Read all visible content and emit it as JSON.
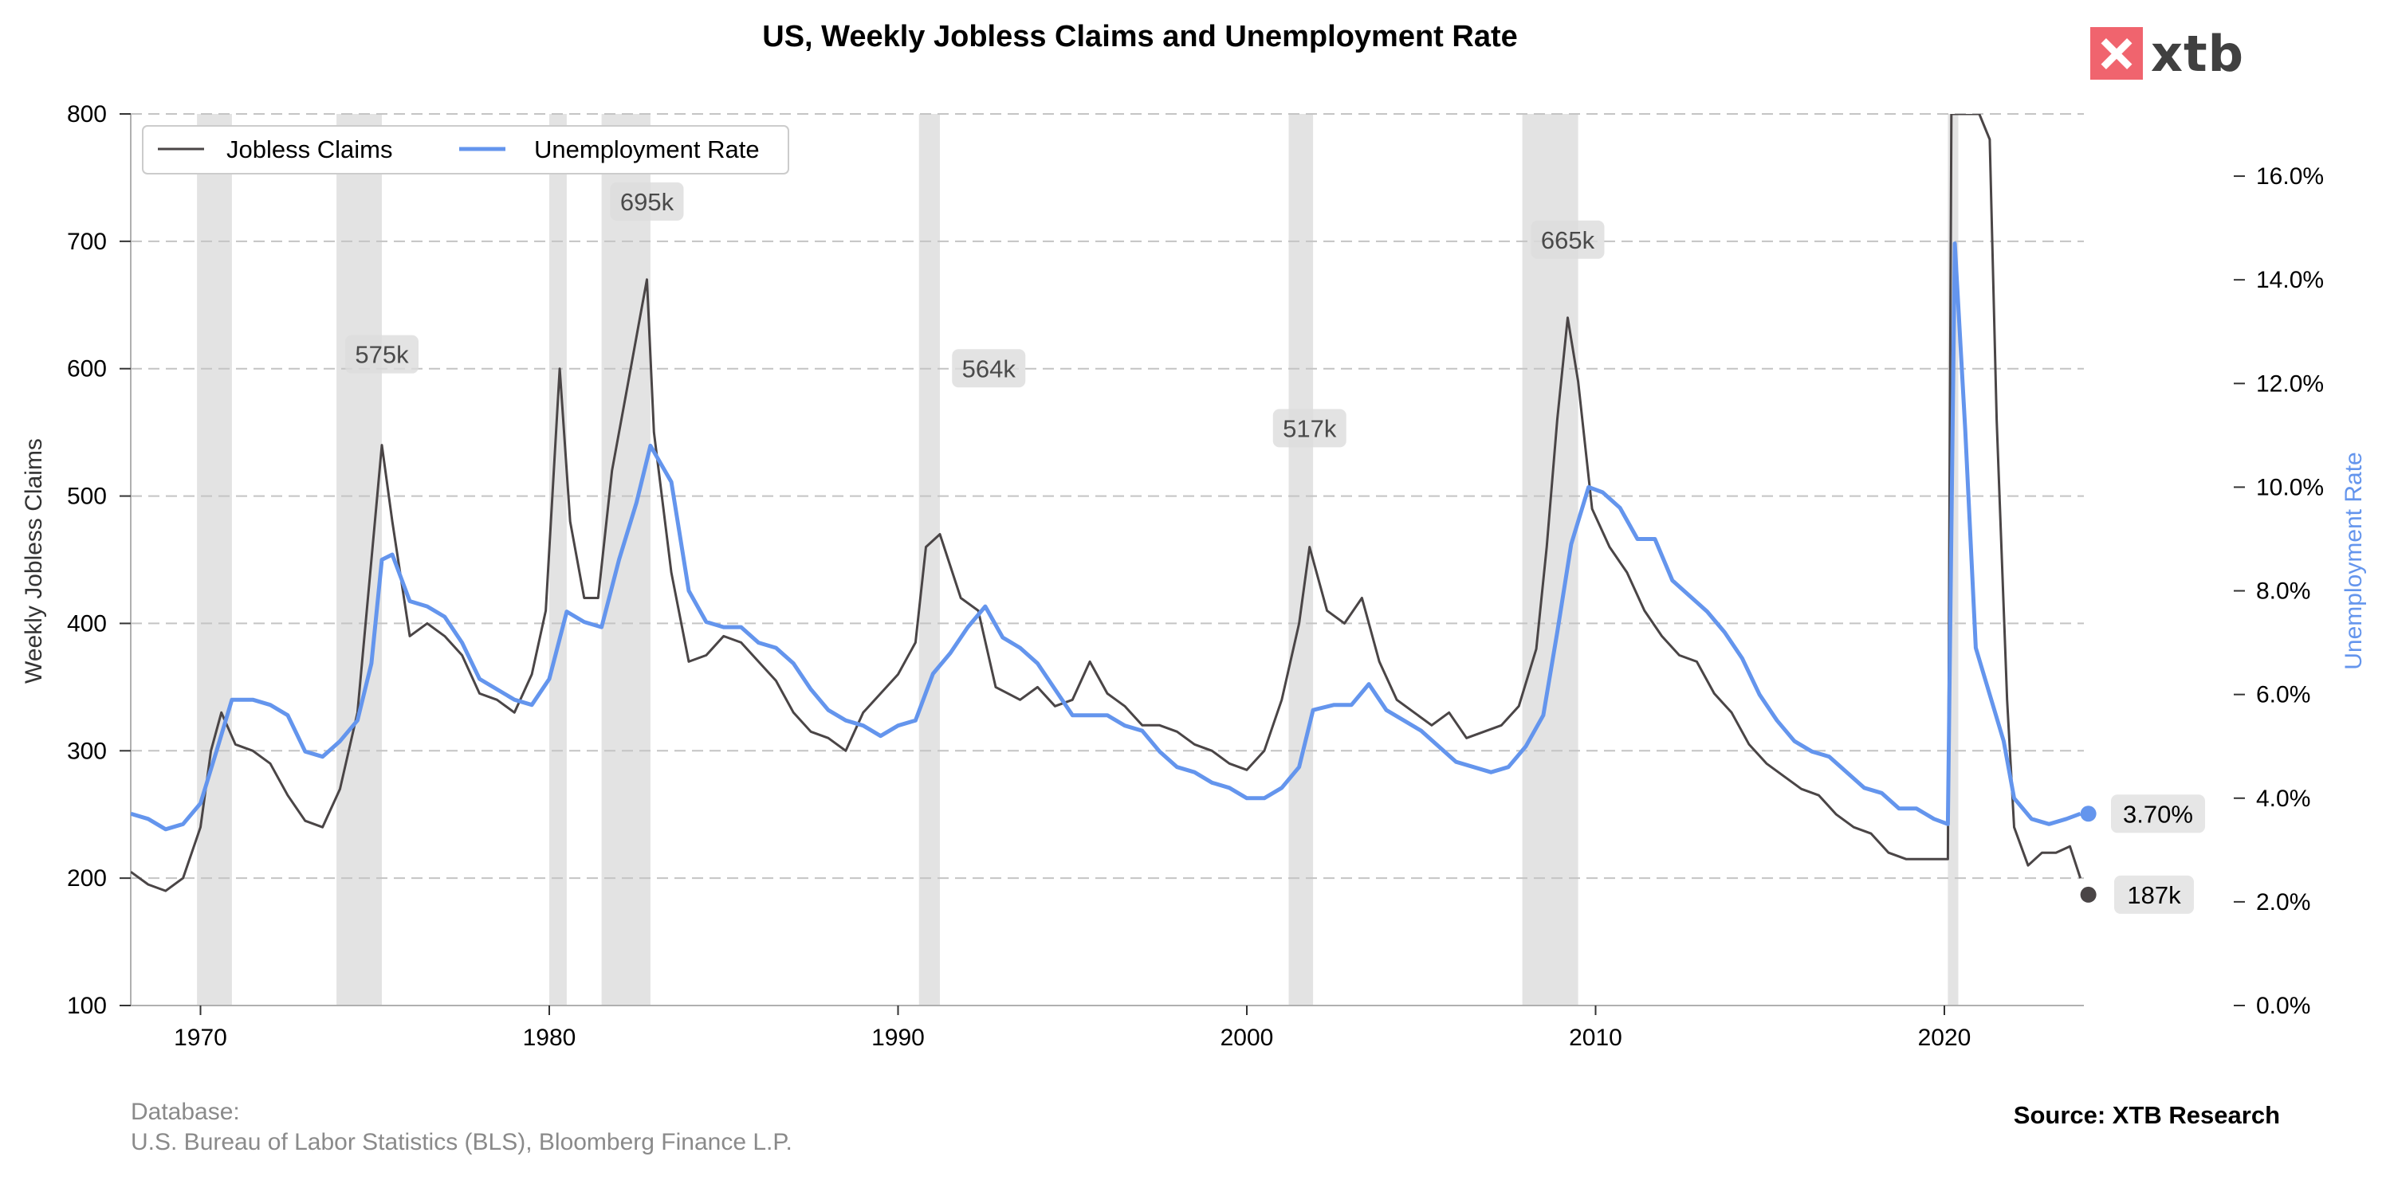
{
  "header": {
    "title": "US, Weekly Jobless Claims and Unemployment Rate"
  },
  "brand": {
    "name": "xtb",
    "accent": "#f0646e"
  },
  "footer": {
    "database_label": "Database:",
    "database_sources": "U.S. Bureau of Labor Statistics (BLS), Bloomberg Finance L.P.",
    "source": "Source: XTB Research"
  },
  "chart_data": {
    "type": "line",
    "title": "US, Weekly Jobless Claims and Unemployment Rate",
    "xlim": [
      1968,
      2024
    ],
    "x_ticks": [
      "1970",
      "1980",
      "1990",
      "2000",
      "2010",
      "2020"
    ],
    "y_left": {
      "label": "Weekly Jobless Claims",
      "lim": [
        100,
        800
      ],
      "ticks": [
        "100",
        "200",
        "300",
        "400",
        "500",
        "600",
        "700",
        "800"
      ]
    },
    "y_right": {
      "label": "Unemployment Rate",
      "lim": [
        0,
        17.2
      ],
      "ticks": [
        "0.0%",
        "2.0%",
        "4.0%",
        "6.0%",
        "8.0%",
        "10.0%",
        "12.0%",
        "14.0%",
        "16.0%"
      ],
      "color": "#6495ED"
    },
    "grid": "horizontal dashed",
    "legend": "top-left",
    "recessions": [
      [
        1969.9,
        1970.9
      ],
      [
        1973.9,
        1975.2
      ],
      [
        1980.0,
        1980.5
      ],
      [
        1981.5,
        1982.9
      ],
      [
        1990.6,
        1991.2
      ],
      [
        2001.2,
        2001.9
      ],
      [
        2007.9,
        2009.5
      ],
      [
        2020.1,
        2020.4
      ]
    ],
    "series": [
      {
        "name": "Jobless Claims",
        "axis": "left",
        "color": "#4a4546",
        "points": [
          [
            1968.0,
            205
          ],
          [
            1968.5,
            195
          ],
          [
            1969.0,
            190
          ],
          [
            1969.5,
            200
          ],
          [
            1970.0,
            240
          ],
          [
            1970.3,
            300
          ],
          [
            1970.6,
            330
          ],
          [
            1971.0,
            305
          ],
          [
            1971.5,
            300
          ],
          [
            1972.0,
            290
          ],
          [
            1972.5,
            265
          ],
          [
            1973.0,
            245
          ],
          [
            1973.5,
            240
          ],
          [
            1974.0,
            270
          ],
          [
            1974.5,
            330
          ],
          [
            1975.0,
            480
          ],
          [
            1975.2,
            540
          ],
          [
            1975.5,
            480
          ],
          [
            1976.0,
            390
          ],
          [
            1976.5,
            400
          ],
          [
            1977.0,
            390
          ],
          [
            1977.5,
            375
          ],
          [
            1978.0,
            345
          ],
          [
            1978.5,
            340
          ],
          [
            1979.0,
            330
          ],
          [
            1979.5,
            360
          ],
          [
            1979.9,
            410
          ],
          [
            1980.3,
            600
          ],
          [
            1980.6,
            480
          ],
          [
            1981.0,
            420
          ],
          [
            1981.4,
            420
          ],
          [
            1981.8,
            520
          ],
          [
            1982.2,
            580
          ],
          [
            1982.6,
            640
          ],
          [
            1982.8,
            670
          ],
          [
            1983.0,
            550
          ],
          [
            1983.5,
            440
          ],
          [
            1984.0,
            370
          ],
          [
            1984.5,
            375
          ],
          [
            1985.0,
            390
          ],
          [
            1985.5,
            385
          ],
          [
            1986.0,
            370
          ],
          [
            1986.5,
            355
          ],
          [
            1987.0,
            330
          ],
          [
            1987.5,
            315
          ],
          [
            1988.0,
            310
          ],
          [
            1988.5,
            300
          ],
          [
            1989.0,
            330
          ],
          [
            1989.5,
            345
          ],
          [
            1990.0,
            360
          ],
          [
            1990.5,
            385
          ],
          [
            1990.8,
            460
          ],
          [
            1991.2,
            470
          ],
          [
            1991.8,
            420
          ],
          [
            1992.3,
            410
          ],
          [
            1992.8,
            350
          ],
          [
            1993.5,
            340
          ],
          [
            1994.0,
            350
          ],
          [
            1994.5,
            335
          ],
          [
            1995.0,
            340
          ],
          [
            1995.5,
            370
          ],
          [
            1996.0,
            345
          ],
          [
            1996.5,
            335
          ],
          [
            1997.0,
            320
          ],
          [
            1997.5,
            320
          ],
          [
            1998.0,
            315
          ],
          [
            1998.5,
            305
          ],
          [
            1999.0,
            300
          ],
          [
            1999.5,
            290
          ],
          [
            2000.0,
            285
          ],
          [
            2000.5,
            300
          ],
          [
            2001.0,
            340
          ],
          [
            2001.5,
            400
          ],
          [
            2001.8,
            460
          ],
          [
            2002.3,
            410
          ],
          [
            2002.8,
            400
          ],
          [
            2003.3,
            420
          ],
          [
            2003.8,
            370
          ],
          [
            2004.3,
            340
          ],
          [
            2004.8,
            330
          ],
          [
            2005.3,
            320
          ],
          [
            2005.8,
            330
          ],
          [
            2006.3,
            310
          ],
          [
            2006.8,
            315
          ],
          [
            2007.3,
            320
          ],
          [
            2007.8,
            335
          ],
          [
            2008.3,
            380
          ],
          [
            2008.6,
            460
          ],
          [
            2008.9,
            560
          ],
          [
            2009.2,
            640
          ],
          [
            2009.5,
            590
          ],
          [
            2009.9,
            490
          ],
          [
            2010.4,
            460
          ],
          [
            2010.9,
            440
          ],
          [
            2011.4,
            410
          ],
          [
            2011.9,
            390
          ],
          [
            2012.4,
            375
          ],
          [
            2012.9,
            370
          ],
          [
            2013.4,
            345
          ],
          [
            2013.9,
            330
          ],
          [
            2014.4,
            305
          ],
          [
            2014.9,
            290
          ],
          [
            2015.4,
            280
          ],
          [
            2015.9,
            270
          ],
          [
            2016.4,
            265
          ],
          [
            2016.9,
            250
          ],
          [
            2017.4,
            240
          ],
          [
            2017.9,
            235
          ],
          [
            2018.4,
            220
          ],
          [
            2018.9,
            215
          ],
          [
            2019.4,
            215
          ],
          [
            2019.9,
            215
          ],
          [
            2020.1,
            215
          ],
          [
            2020.2,
            800
          ],
          [
            2020.6,
            800
          ],
          [
            2021.0,
            800
          ],
          [
            2021.3,
            780
          ],
          [
            2021.5,
            560
          ],
          [
            2021.8,
            340
          ],
          [
            2022.0,
            240
          ],
          [
            2022.4,
            210
          ],
          [
            2022.8,
            220
          ],
          [
            2023.2,
            220
          ],
          [
            2023.6,
            225
          ],
          [
            2023.9,
            200
          ]
        ]
      },
      {
        "name": "Unemployment Rate",
        "axis": "right",
        "color": "#6495ED",
        "points": [
          [
            1968.0,
            3.7
          ],
          [
            1968.5,
            3.6
          ],
          [
            1969.0,
            3.4
          ],
          [
            1969.5,
            3.5
          ],
          [
            1970.0,
            3.9
          ],
          [
            1970.5,
            5.0
          ],
          [
            1970.9,
            5.9
          ],
          [
            1971.5,
            5.9
          ],
          [
            1972.0,
            5.8
          ],
          [
            1972.5,
            5.6
          ],
          [
            1973.0,
            4.9
          ],
          [
            1973.5,
            4.8
          ],
          [
            1974.0,
            5.1
          ],
          [
            1974.5,
            5.5
          ],
          [
            1974.9,
            6.6
          ],
          [
            1975.2,
            8.6
          ],
          [
            1975.5,
            8.7
          ],
          [
            1976.0,
            7.8
          ],
          [
            1976.5,
            7.7
          ],
          [
            1977.0,
            7.5
          ],
          [
            1977.5,
            7.0
          ],
          [
            1978.0,
            6.3
          ],
          [
            1978.5,
            6.1
          ],
          [
            1979.0,
            5.9
          ],
          [
            1979.5,
            5.8
          ],
          [
            1980.0,
            6.3
          ],
          [
            1980.5,
            7.6
          ],
          [
            1981.0,
            7.4
          ],
          [
            1981.5,
            7.3
          ],
          [
            1982.0,
            8.6
          ],
          [
            1982.5,
            9.7
          ],
          [
            1982.9,
            10.8
          ],
          [
            1983.5,
            10.1
          ],
          [
            1984.0,
            8.0
          ],
          [
            1984.5,
            7.4
          ],
          [
            1985.0,
            7.3
          ],
          [
            1985.5,
            7.3
          ],
          [
            1986.0,
            7.0
          ],
          [
            1986.5,
            6.9
          ],
          [
            1987.0,
            6.6
          ],
          [
            1987.5,
            6.1
          ],
          [
            1988.0,
            5.7
          ],
          [
            1988.5,
            5.5
          ],
          [
            1989.0,
            5.4
          ],
          [
            1989.5,
            5.2
          ],
          [
            1990.0,
            5.4
          ],
          [
            1990.5,
            5.5
          ],
          [
            1991.0,
            6.4
          ],
          [
            1991.5,
            6.8
          ],
          [
            1992.0,
            7.3
          ],
          [
            1992.5,
            7.7
          ],
          [
            1993.0,
            7.1
          ],
          [
            1993.5,
            6.9
          ],
          [
            1994.0,
            6.6
          ],
          [
            1994.5,
            6.1
          ],
          [
            1995.0,
            5.6
          ],
          [
            1995.5,
            5.6
          ],
          [
            1996.0,
            5.6
          ],
          [
            1996.5,
            5.4
          ],
          [
            1997.0,
            5.3
          ],
          [
            1997.5,
            4.9
          ],
          [
            1998.0,
            4.6
          ],
          [
            1998.5,
            4.5
          ],
          [
            1999.0,
            4.3
          ],
          [
            1999.5,
            4.2
          ],
          [
            2000.0,
            4.0
          ],
          [
            2000.5,
            4.0
          ],
          [
            2001.0,
            4.2
          ],
          [
            2001.5,
            4.6
          ],
          [
            2001.9,
            5.7
          ],
          [
            2002.5,
            5.8
          ],
          [
            2003.0,
            5.8
          ],
          [
            2003.5,
            6.2
          ],
          [
            2004.0,
            5.7
          ],
          [
            2004.5,
            5.5
          ],
          [
            2005.0,
            5.3
          ],
          [
            2005.5,
            5.0
          ],
          [
            2006.0,
            4.7
          ],
          [
            2006.5,
            4.6
          ],
          [
            2007.0,
            4.5
          ],
          [
            2007.5,
            4.6
          ],
          [
            2008.0,
            5.0
          ],
          [
            2008.5,
            5.6
          ],
          [
            2008.9,
            7.2
          ],
          [
            2009.3,
            8.9
          ],
          [
            2009.8,
            10.0
          ],
          [
            2010.2,
            9.9
          ],
          [
            2010.7,
            9.6
          ],
          [
            2011.2,
            9.0
          ],
          [
            2011.7,
            9.0
          ],
          [
            2012.2,
            8.2
          ],
          [
            2012.7,
            7.9
          ],
          [
            2013.2,
            7.6
          ],
          [
            2013.7,
            7.2
          ],
          [
            2014.2,
            6.7
          ],
          [
            2014.7,
            6.0
          ],
          [
            2015.2,
            5.5
          ],
          [
            2015.7,
            5.1
          ],
          [
            2016.2,
            4.9
          ],
          [
            2016.7,
            4.8
          ],
          [
            2017.2,
            4.5
          ],
          [
            2017.7,
            4.2
          ],
          [
            2018.2,
            4.1
          ],
          [
            2018.7,
            3.8
          ],
          [
            2019.2,
            3.8
          ],
          [
            2019.7,
            3.6
          ],
          [
            2020.1,
            3.5
          ],
          [
            2020.3,
            14.7
          ],
          [
            2020.6,
            11.1
          ],
          [
            2020.9,
            6.9
          ],
          [
            2021.3,
            6.0
          ],
          [
            2021.7,
            5.1
          ],
          [
            2022.0,
            4.0
          ],
          [
            2022.5,
            3.6
          ],
          [
            2023.0,
            3.5
          ],
          [
            2023.5,
            3.6
          ],
          [
            2023.9,
            3.7
          ]
        ]
      }
    ],
    "peak_annotations": [
      {
        "label": "575k",
        "x": 1975.2,
        "value": 575
      },
      {
        "label": "695k",
        "x": 1982.8,
        "value": 695
      },
      {
        "label": "564k",
        "x": 1992.6,
        "value": 564
      },
      {
        "label": "517k",
        "x": 2001.8,
        "value": 517
      },
      {
        "label": "665k",
        "x": 2009.2,
        "value": 665
      }
    ],
    "last_values": {
      "claims": {
        "label": "187k",
        "x": 2023.9,
        "value": 187
      },
      "rate": {
        "label": "3.70%",
        "x": 2023.9,
        "value": 3.7
      }
    }
  }
}
